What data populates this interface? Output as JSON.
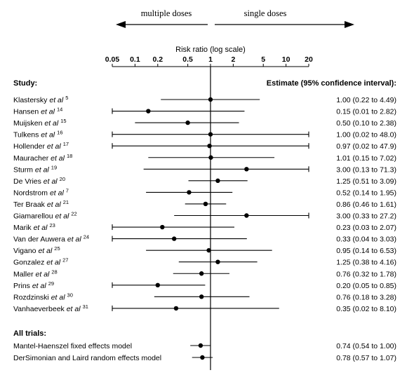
{
  "chart_data": {
    "type": "forest",
    "direction_labels": {
      "left": "multiple doses",
      "right": "single doses"
    },
    "axis": {
      "label": "Risk ratio (log scale)",
      "scale": "log",
      "ticks": [
        0.05,
        0.1,
        0.2,
        0.5,
        1,
        2,
        5,
        10,
        20
      ],
      "tick_labels": [
        "0.05",
        "0.1",
        "0.2",
        "0.5",
        "1",
        "2",
        "5",
        "10",
        "20"
      ],
      "xlim": [
        0.05,
        20
      ],
      "reference_line": 1
    },
    "study_header": "Study:",
    "estimate_header": "Estimate (95% confidence interval):",
    "studies": [
      {
        "name": "Klastersky et al",
        "ref": "5",
        "rr": 1.0,
        "lo": 0.22,
        "hi": 4.49,
        "label": "1.00 (0.22 to 4.49)"
      },
      {
        "name": "Hansen et al",
        "ref": "14",
        "rr": 0.15,
        "lo": 0.01,
        "hi": 2.82,
        "label": "0.15 (0.01 to 2.82)"
      },
      {
        "name": "Muijsken et al",
        "ref": "15",
        "rr": 0.5,
        "lo": 0.1,
        "hi": 2.38,
        "label": "0.50 (0.10 to 2.38)"
      },
      {
        "name": "Tulkens et al",
        "ref": "16",
        "rr": 1.0,
        "lo": 0.02,
        "hi": 48.0,
        "label": "1.00 (0.02 to 48.0)"
      },
      {
        "name": "Hollender et al",
        "ref": "17",
        "rr": 0.97,
        "lo": 0.02,
        "hi": 47.9,
        "label": "0.97 (0.02 to 47.9)"
      },
      {
        "name": "Mauracher et al",
        "ref": "18",
        "rr": 1.01,
        "lo": 0.15,
        "hi": 7.02,
        "label": "1.01 (0.15 to 7.02)"
      },
      {
        "name": "Sturm et al",
        "ref": "19",
        "rr": 3.0,
        "lo": 0.13,
        "hi": 71.3,
        "label": "3.00 (0.13 to 71.3)"
      },
      {
        "name": "De Vries et al",
        "ref": "20",
        "rr": 1.25,
        "lo": 0.51,
        "hi": 3.09,
        "label": "1.25 (0.51 to 3.09)"
      },
      {
        "name": "Nordstrom et al",
        "ref": "7",
        "rr": 0.52,
        "lo": 0.14,
        "hi": 1.95,
        "label": "0.52 (0.14 to 1.95)"
      },
      {
        "name": "Ter Braak et al",
        "ref": "21",
        "rr": 0.86,
        "lo": 0.46,
        "hi": 1.61,
        "label": "0.86 (0.46 to 1.61)"
      },
      {
        "name": "Giamarellou et al",
        "ref": "22",
        "rr": 3.0,
        "lo": 0.33,
        "hi": 27.2,
        "label": "3.00 (0.33 to 27.2)"
      },
      {
        "name": "Marik et al",
        "ref": "23",
        "rr": 0.23,
        "lo": 0.03,
        "hi": 2.07,
        "label": "0.23 (0.03 to 2.07)"
      },
      {
        "name": "Van der Auwera et al",
        "ref": "24",
        "rr": 0.33,
        "lo": 0.04,
        "hi": 3.03,
        "label": "0.33 (0.04 to 3.03)"
      },
      {
        "name": "Vigano et al",
        "ref": "25",
        "rr": 0.95,
        "lo": 0.14,
        "hi": 6.53,
        "label": "0.95 (0.14 to 6.53)"
      },
      {
        "name": "Gonzalez et al",
        "ref": "27",
        "rr": 1.25,
        "lo": 0.38,
        "hi": 4.16,
        "label": "1.25 (0.38 to 4.16)"
      },
      {
        "name": "Maller et al",
        "ref": "28",
        "rr": 0.76,
        "lo": 0.32,
        "hi": 1.78,
        "label": "0.76 (0.32 to 1.78)"
      },
      {
        "name": "Prins et al",
        "ref": "29",
        "rr": 0.2,
        "lo": 0.05,
        "hi": 0.85,
        "label": "0.20 (0.05 to 0.85)"
      },
      {
        "name": "Rozdzinski et al",
        "ref": "30",
        "rr": 0.76,
        "lo": 0.18,
        "hi": 3.28,
        "label": "0.76 (0.18 to 3.28)"
      },
      {
        "name": "Vanhaeverbeek et al",
        "ref": "31",
        "rr": 0.35,
        "lo": 0.02,
        "hi": 8.1,
        "label": "0.35 (0.02 to 8.10)"
      }
    ],
    "pooled_header": "All trials:",
    "pooled": [
      {
        "name": "Mantel-Haenszel fixed effects model",
        "rr": 0.74,
        "lo": 0.54,
        "hi": 1.0,
        "label": "0.74 (0.54 to 1.00)"
      },
      {
        "name": "DerSimonian and Laird random effects model",
        "rr": 0.78,
        "lo": 0.57,
        "hi": 1.07,
        "label": "0.78 (0.57 to 1.07)"
      }
    ]
  }
}
